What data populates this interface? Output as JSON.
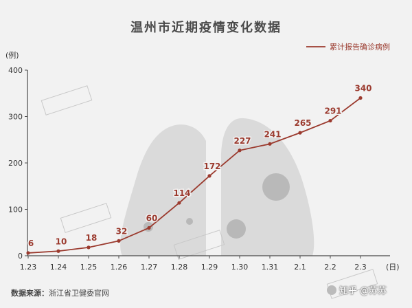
{
  "title": "温州市近期疫情变化数据",
  "source_label": "数据来源：",
  "source_text": "浙江省卫健委官网",
  "credit": "知乎 @苏苏",
  "chart_data": {
    "type": "line",
    "title": "温州市近期疫情变化数据",
    "categories": [
      "1.23",
      "1.24",
      "1.25",
      "1.26",
      "1.27",
      "1.28",
      "1.29",
      "1.30",
      "1.31",
      "2.1",
      "2.2",
      "2.3"
    ],
    "series": [
      {
        "name": "累计报告确诊病例",
        "values": [
          6,
          10,
          18,
          32,
          60,
          114,
          172,
          227,
          241,
          265,
          291,
          340
        ]
      }
    ],
    "ylabel": "(例)",
    "xlabel": "(日)",
    "ylim": [
      0,
      400
    ],
    "yticks": [
      0,
      100,
      200,
      300,
      400
    ],
    "grid": false,
    "legend": "top-right",
    "line_color": "#9b3a2e",
    "axis_color": "#4a4a4a"
  }
}
